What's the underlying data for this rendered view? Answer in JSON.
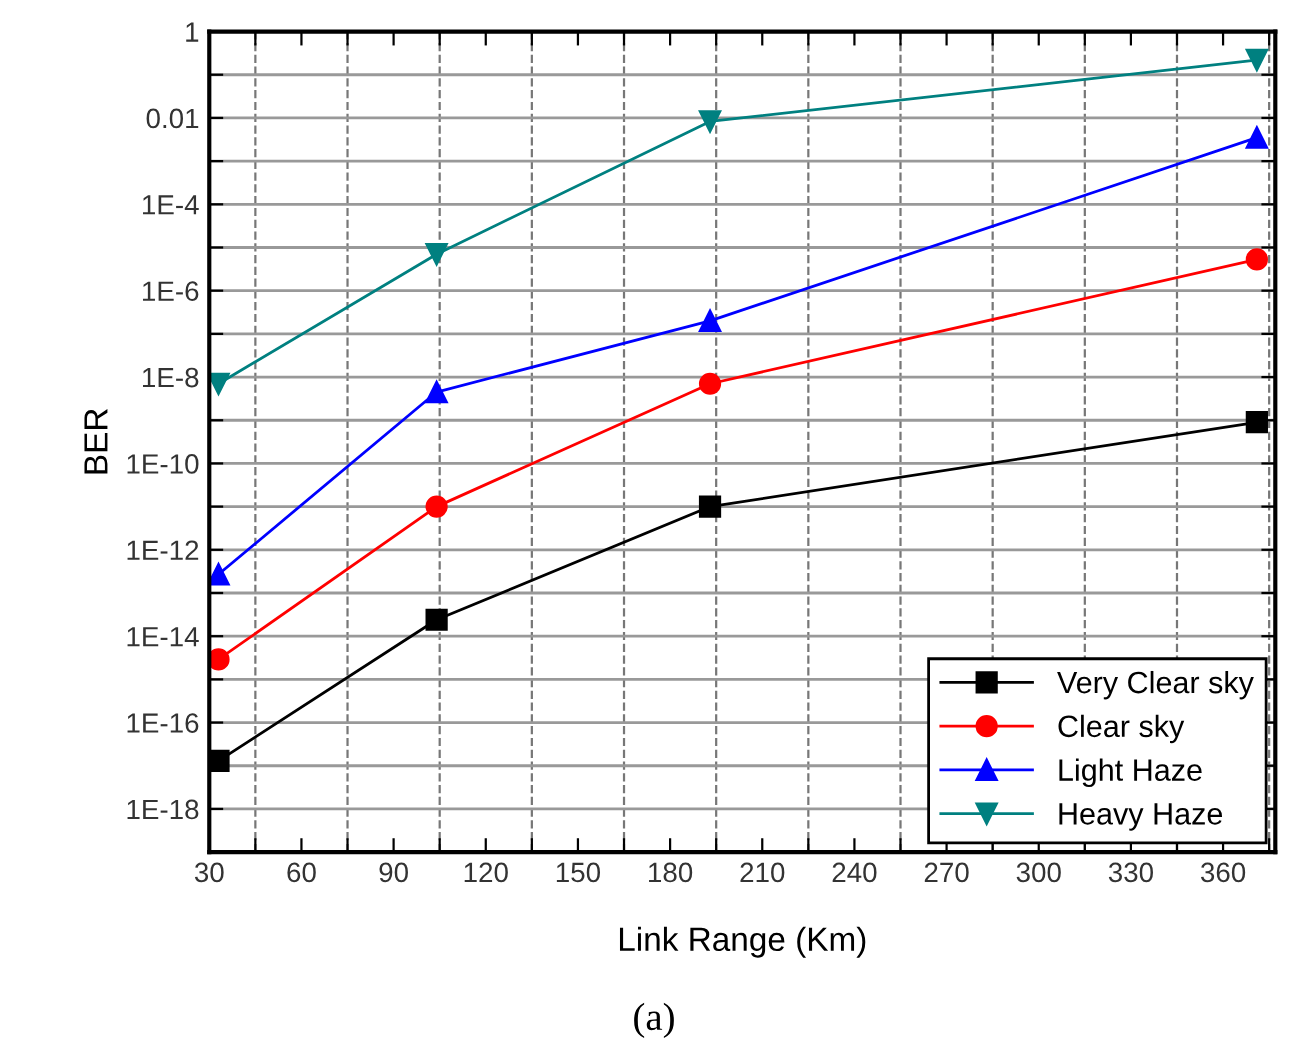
{
  "chart_data": {
    "type": "line",
    "xlabel": "Link Range (Km)",
    "ylabel": "BER",
    "log": "y",
    "grid": true,
    "legend": "bottom right",
    "x": [
      33,
      104,
      193,
      371
    ],
    "xlim": [
      30,
      377
    ],
    "xticks": [
      30,
      {
        "value": 45,
        "label": null
      },
      60,
      {
        "value": 75,
        "label": null
      },
      90,
      {
        "value": 105,
        "label": null
      },
      120,
      {
        "value": 135,
        "label": null
      },
      150,
      {
        "value": 165,
        "label": null
      },
      180,
      {
        "value": 195,
        "label": null
      },
      210,
      {
        "value": 225,
        "label": null
      },
      240,
      {
        "value": 255,
        "label": null
      },
      270,
      {
        "value": 285,
        "label": null
      },
      300,
      {
        "value": 315,
        "label": null
      },
      330,
      {
        "value": 345,
        "label": null
      },
      360,
      {
        "value": 375,
        "label": null
      }
    ],
    "ylim": [
      1e-19,
      1
    ],
    "yticks": [
      {
        "value": 1,
        "label": "1"
      },
      {
        "value": 0.1,
        "label": null
      },
      {
        "value": 0.01,
        "label": "0.01"
      },
      {
        "value": 0.001,
        "label": null
      },
      {
        "value": 0.0001,
        "label": "1E-4"
      },
      {
        "value": 1e-05,
        "label": null
      },
      {
        "value": 1e-06,
        "label": "1E-6"
      },
      {
        "value": 1e-07,
        "label": null
      },
      {
        "value": 1e-08,
        "label": "1E-8"
      },
      {
        "value": 1e-09,
        "label": null
      },
      {
        "value": 1e-10,
        "label": "1E-10"
      },
      {
        "value": 1e-11,
        "label": null
      },
      {
        "value": 1e-12,
        "label": "1E-12"
      },
      {
        "value": 1e-13,
        "label": null
      },
      {
        "value": 1e-14,
        "label": "1E-14"
      },
      {
        "value": 1e-15,
        "label": null
      },
      {
        "value": 1e-16,
        "label": "1E-16"
      },
      {
        "value": 1e-17,
        "label": null
      },
      {
        "value": 1e-18,
        "label": "1E-18"
      },
      {
        "value": 1e-19,
        "label": null
      }
    ],
    "series": [
      {
        "name": "Very Clear sky",
        "color": "#000000",
        "marker": "square",
        "values": [
          1.3e-17,
          2.4e-14,
          1e-11,
          9e-10
        ]
      },
      {
        "name": "Clear sky",
        "color": "#ff0000",
        "marker": "circle",
        "values": [
          2.9e-15,
          1e-11,
          7e-09,
          5.3e-06
        ]
      },
      {
        "name": "Light Haze",
        "color": "#0000ff",
        "marker": "triangle",
        "values": [
          2.7e-13,
          4.5e-09,
          2e-07,
          0.0035
        ]
      },
      {
        "name": "Heavy Haze",
        "color": "#008080",
        "marker": "triangle_down",
        "values": [
          7e-09,
          7e-06,
          0.0083,
          0.22
        ]
      }
    ],
    "annotations": [
      "(a)"
    ]
  }
}
